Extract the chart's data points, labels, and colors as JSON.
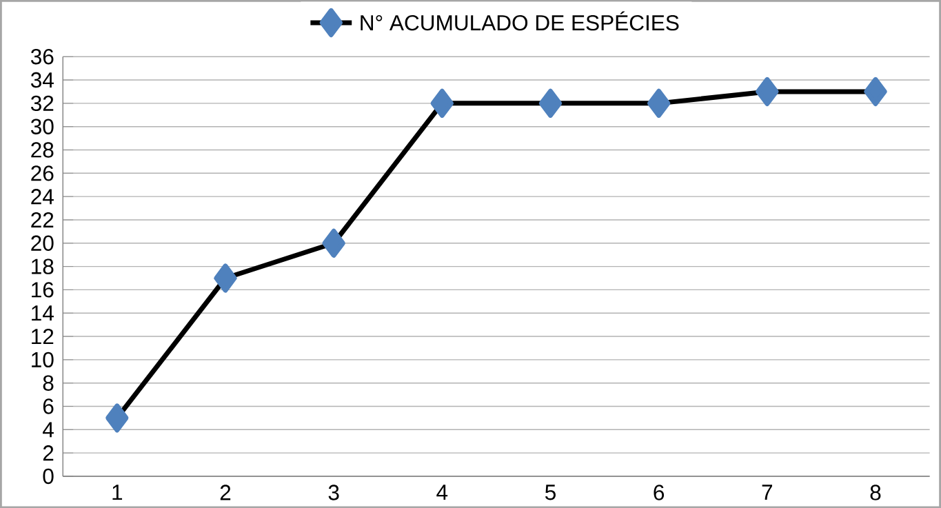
{
  "chart_data": {
    "type": "line",
    "categories": [
      "1",
      "2",
      "3",
      "4",
      "5",
      "6",
      "7",
      "8"
    ],
    "series": [
      {
        "name": "N° ACUMULADO DE ESPÉCIES",
        "color": "#000000",
        "values": [
          5,
          17,
          20,
          32,
          32,
          32,
          33,
          33
        ]
      }
    ],
    "ylim": [
      0,
      36
    ],
    "yticks": [
      0,
      2,
      4,
      6,
      8,
      10,
      12,
      14,
      16,
      18,
      20,
      22,
      24,
      26,
      28,
      30,
      32,
      34,
      36
    ],
    "grid": "y",
    "legend": "top",
    "marker": "diamond",
    "line_style": "solid"
  }
}
